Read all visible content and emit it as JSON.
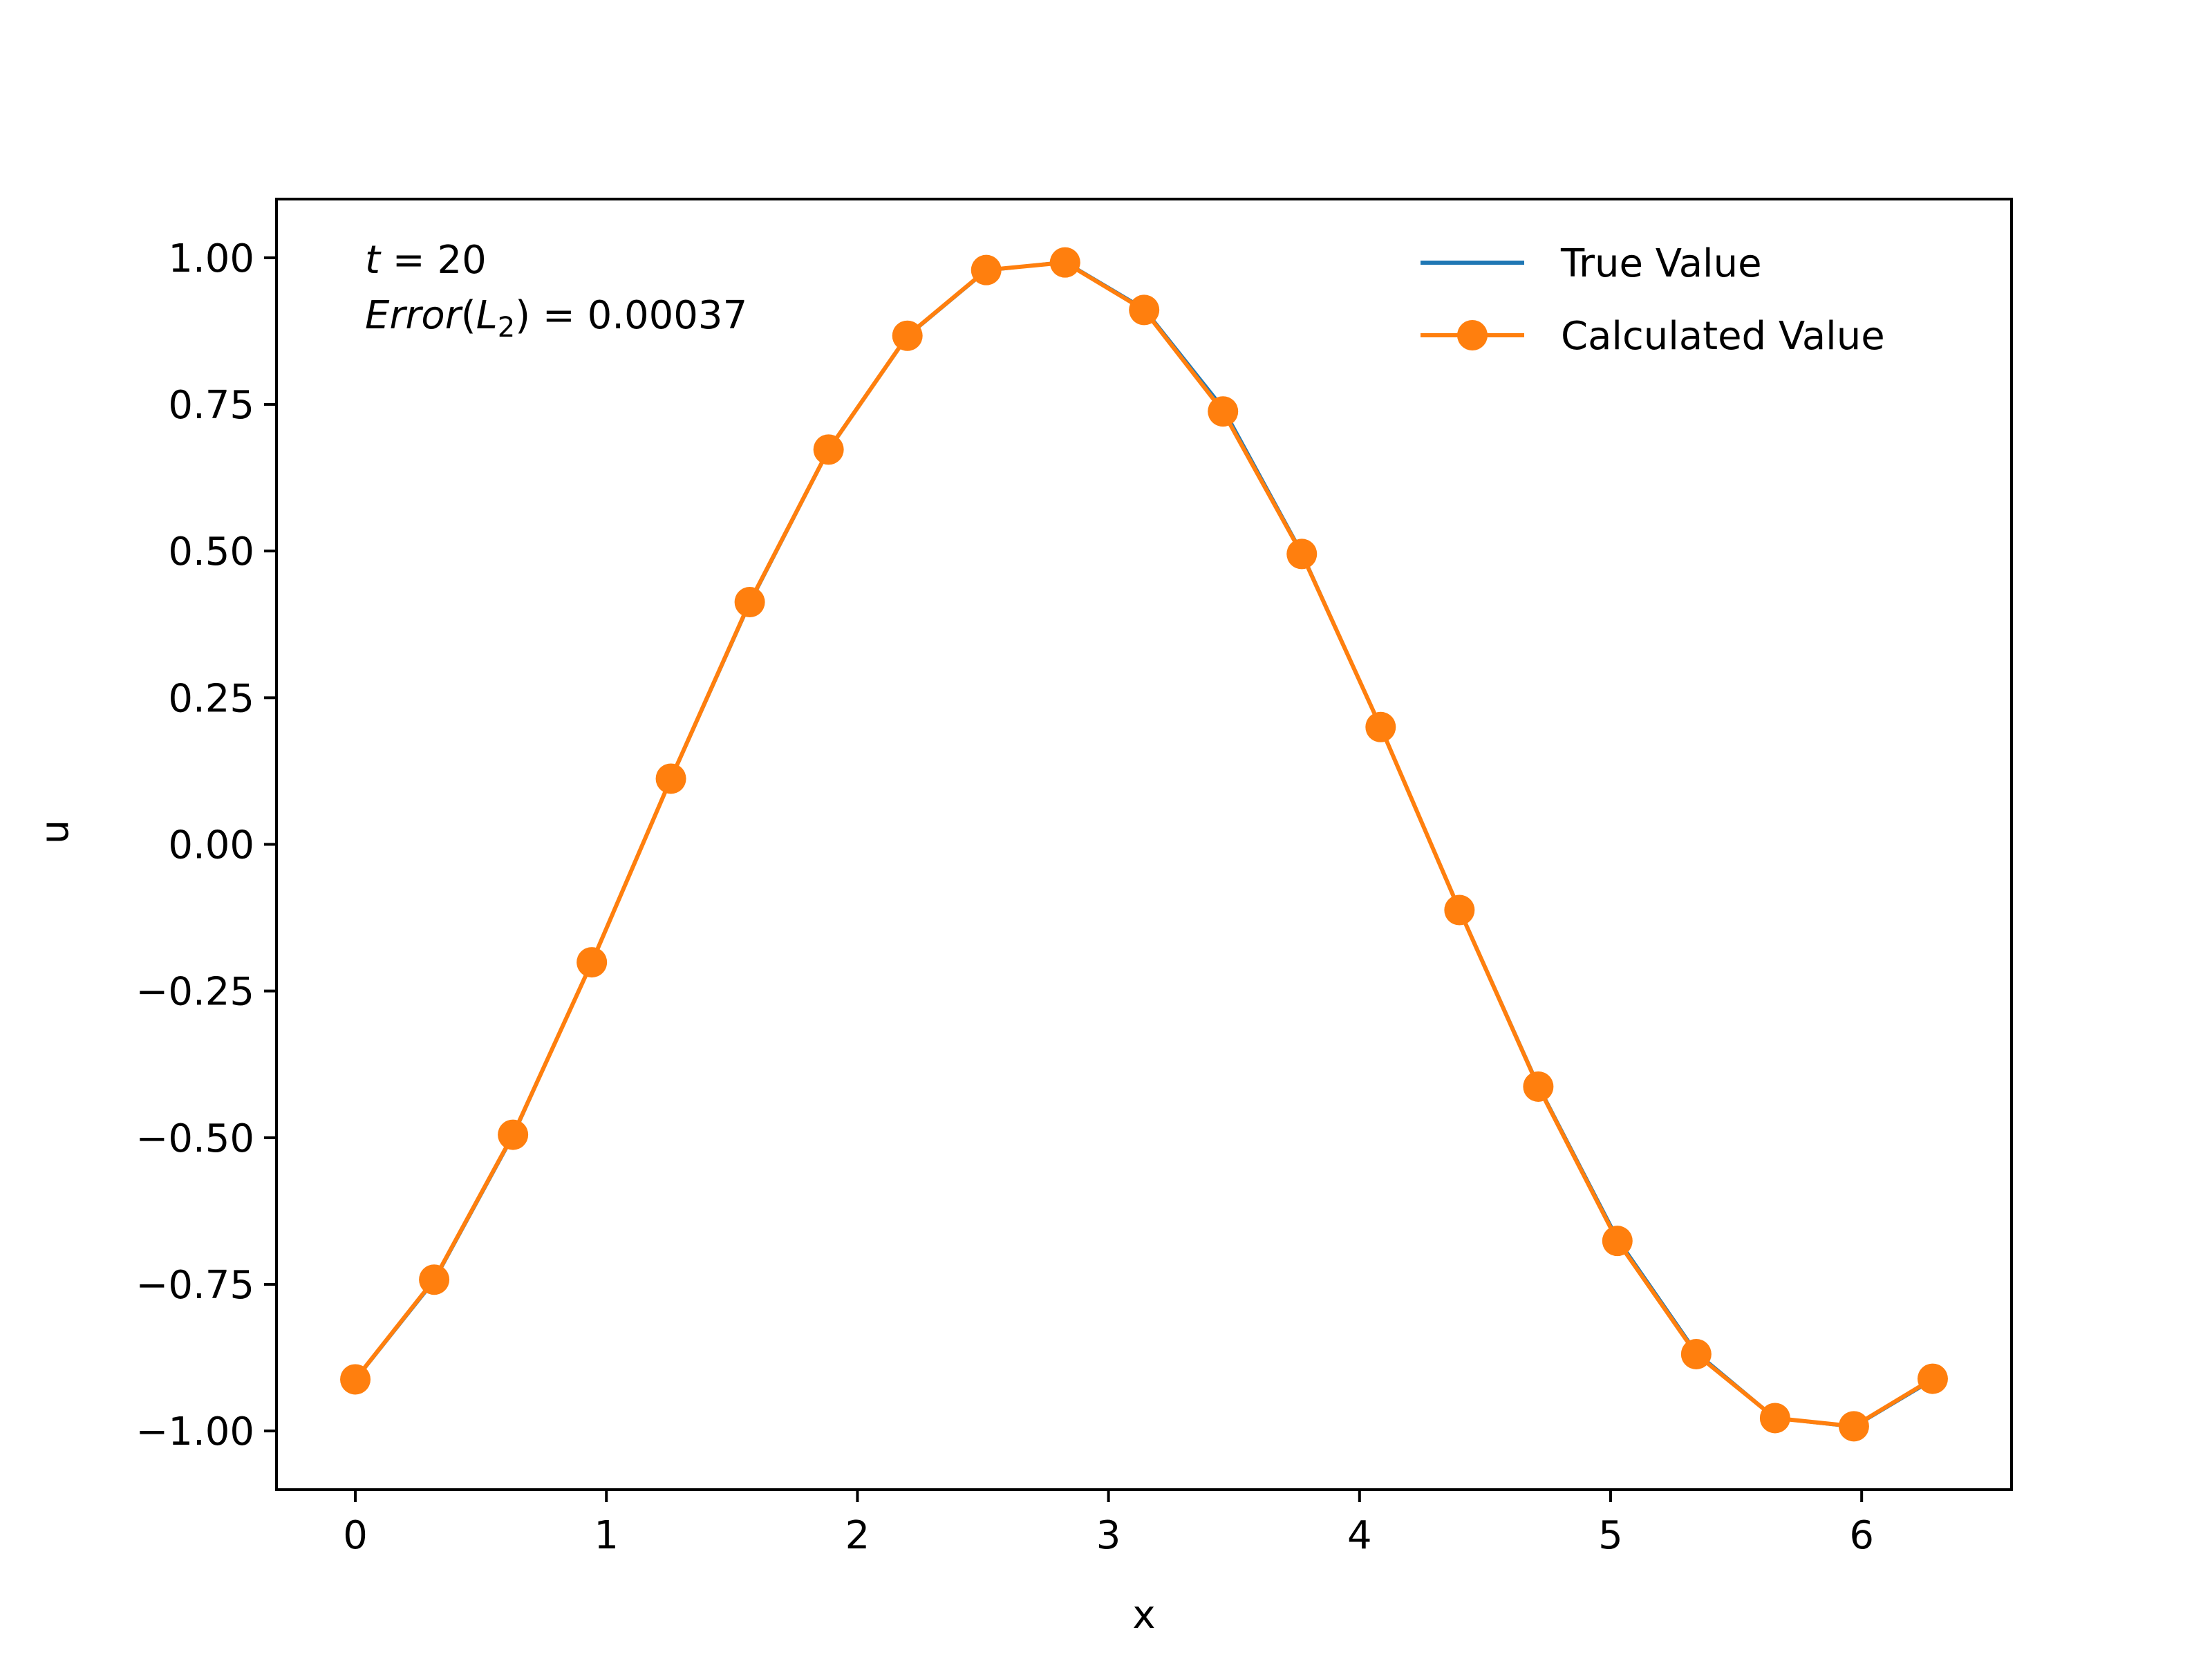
{
  "chart_data": {
    "type": "line",
    "xlabel": "x",
    "ylabel": "u",
    "xlim": [
      -0.314,
      6.597
    ],
    "ylim": [
      -1.1,
      1.1
    ],
    "xticks": [
      0,
      1,
      2,
      3,
      4,
      5,
      6
    ],
    "yticks": [
      1.0,
      0.75,
      0.5,
      0.25,
      0.0,
      -0.25,
      -0.5,
      -0.75,
      -1.0
    ],
    "xtick_labels": [
      "0",
      "1",
      "2",
      "3",
      "4",
      "5",
      "6"
    ],
    "ytick_labels": [
      "1.00",
      "0.75",
      "0.50",
      "0.25",
      "0.00",
      "−0.25",
      "−0.50",
      "−0.75",
      "−1.00"
    ],
    "grid": false,
    "legend_position": "top-right",
    "annotations": {
      "t_var": "t",
      "t_eq": " = 20",
      "err_word": "Error",
      "err_open": "(",
      "err_L": "L",
      "err_sub": "2",
      "err_close": ")",
      "err_eq": " = 0.00037"
    },
    "x": [
      0,
      0.314,
      0.628,
      0.942,
      1.257,
      1.571,
      1.885,
      2.199,
      2.513,
      2.827,
      3.142,
      3.456,
      3.77,
      4.084,
      4.398,
      4.712,
      5.027,
      5.341,
      5.655,
      5.969,
      6.283
    ],
    "series": [
      {
        "name": "True Value",
        "color": "#1f77b4",
        "marker": "none",
        "values": [
          -0.913,
          -0.744,
          -0.497,
          -0.2,
          0.111,
          0.411,
          0.672,
          0.866,
          0.978,
          0.993,
          0.913,
          0.744,
          0.497,
          0.2,
          -0.111,
          -0.411,
          -0.672,
          -0.866,
          -0.978,
          -0.993,
          -0.913
        ]
      },
      {
        "name": "Calculated Value",
        "color": "#ff7f0e",
        "marker": "circle",
        "values": [
          -0.912,
          -0.742,
          -0.495,
          -0.201,
          0.112,
          0.413,
          0.673,
          0.867,
          0.979,
          0.992,
          0.911,
          0.738,
          0.495,
          0.2,
          -0.112,
          -0.413,
          -0.676,
          -0.869,
          -0.978,
          -0.992,
          -0.911
        ]
      }
    ]
  }
}
